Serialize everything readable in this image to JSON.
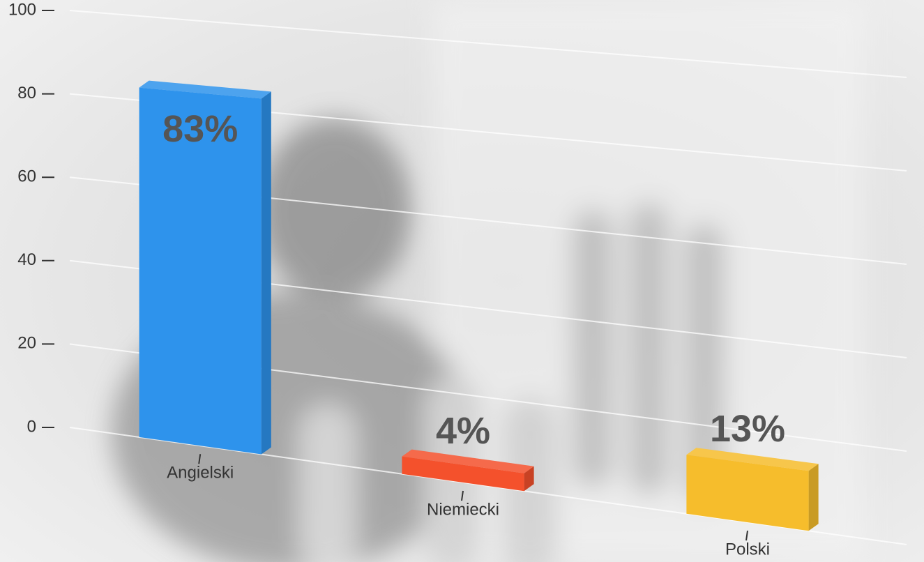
{
  "chart_data": {
    "type": "bar3d",
    "categories": [
      "Angielski",
      "Niemiecki",
      "Polski"
    ],
    "values": [
      83,
      4,
      13
    ],
    "value_labels": [
      "83%",
      "4%",
      "13%"
    ],
    "colors": [
      "#2e93ec",
      "#f4512c",
      "#f6bd2c"
    ],
    "ylim": [
      0,
      100
    ],
    "yticks": [
      0,
      20,
      40,
      60,
      80,
      100
    ],
    "grid": true
  }
}
